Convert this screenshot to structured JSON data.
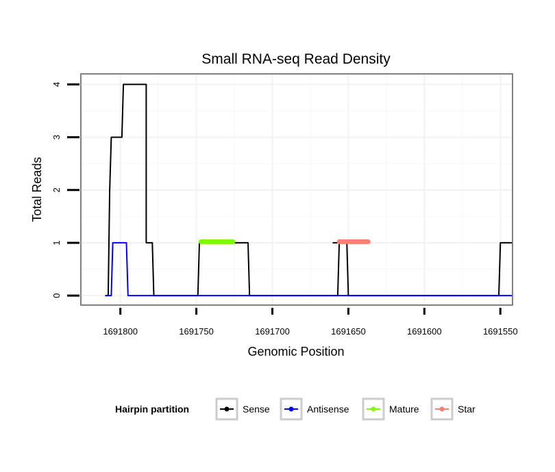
{
  "chart_data": {
    "type": "line",
    "title": "Small RNA-seq Read Density",
    "xlabel": "Genomic Position",
    "ylabel": "Total Reads",
    "xlim": [
      1691826,
      1691542
    ],
    "x_reversed": true,
    "ylim": [
      -0.18,
      4.2
    ],
    "x_ticks": [
      1691800,
      1691750,
      1691700,
      1691650,
      1691600,
      1691550
    ],
    "x_tick_labels": [
      "1691800",
      "1691750",
      "1691700",
      "1691650",
      "1691600",
      "1691550"
    ],
    "y_ticks": [
      0,
      1,
      2,
      3,
      4
    ],
    "y_tick_labels": [
      "0",
      "1",
      "2",
      "3",
      "4"
    ],
    "grid": true,
    "legend": {
      "title": "Hairpin partition",
      "placement": "bottom",
      "entries": [
        {
          "name": "Sense",
          "color": "#000000"
        },
        {
          "name": "Antisense",
          "color": "#0000ff"
        },
        {
          "name": "Mature",
          "color": "#7cfc00"
        },
        {
          "name": "Star",
          "color": "#fa8072"
        }
      ]
    },
    "series": [
      {
        "name": "Sense",
        "color": "#000000",
        "x": [
          1691810,
          1691808,
          1691807,
          1691806,
          1691799,
          1691798,
          1691792,
          1691791,
          1691784,
          1691783,
          1691783,
          1691782,
          1691779,
          1691778,
          1691761,
          1691760,
          1691749,
          1691748,
          1691716,
          1691715,
          1691706,
          1691705,
          1691670,
          1691669,
          1691657,
          1691656,
          1691660,
          1691659,
          1691651,
          1691650,
          1691624,
          1691623,
          1691609,
          1691608,
          1691560,
          1691558,
          1691551,
          1691550,
          1691542
        ],
        "y": [
          0,
          0,
          2,
          3,
          3,
          4,
          4,
          4,
          4,
          4,
          1,
          1,
          1,
          0,
          0,
          0,
          0,
          1,
          1,
          0,
          0,
          0,
          0,
          0,
          0,
          1,
          1,
          1,
          1,
          0,
          0,
          0,
          0,
          0,
          0,
          0,
          0,
          1,
          1
        ]
      },
      {
        "name": "Antisense",
        "color": "#0000ff",
        "x": [
          1691810,
          1691806,
          1691805,
          1691796,
          1691795,
          1691542
        ],
        "y": [
          0,
          0,
          1,
          1,
          0,
          0
        ]
      },
      {
        "name": "Mature",
        "color": "#7cfc00",
        "x": [
          1691747,
          1691726
        ],
        "y": [
          1.02,
          1.02
        ]
      },
      {
        "name": "Star",
        "color": "#fa8072",
        "x": [
          1691656,
          1691637
        ],
        "y": [
          1.02,
          1.02
        ]
      }
    ]
  }
}
